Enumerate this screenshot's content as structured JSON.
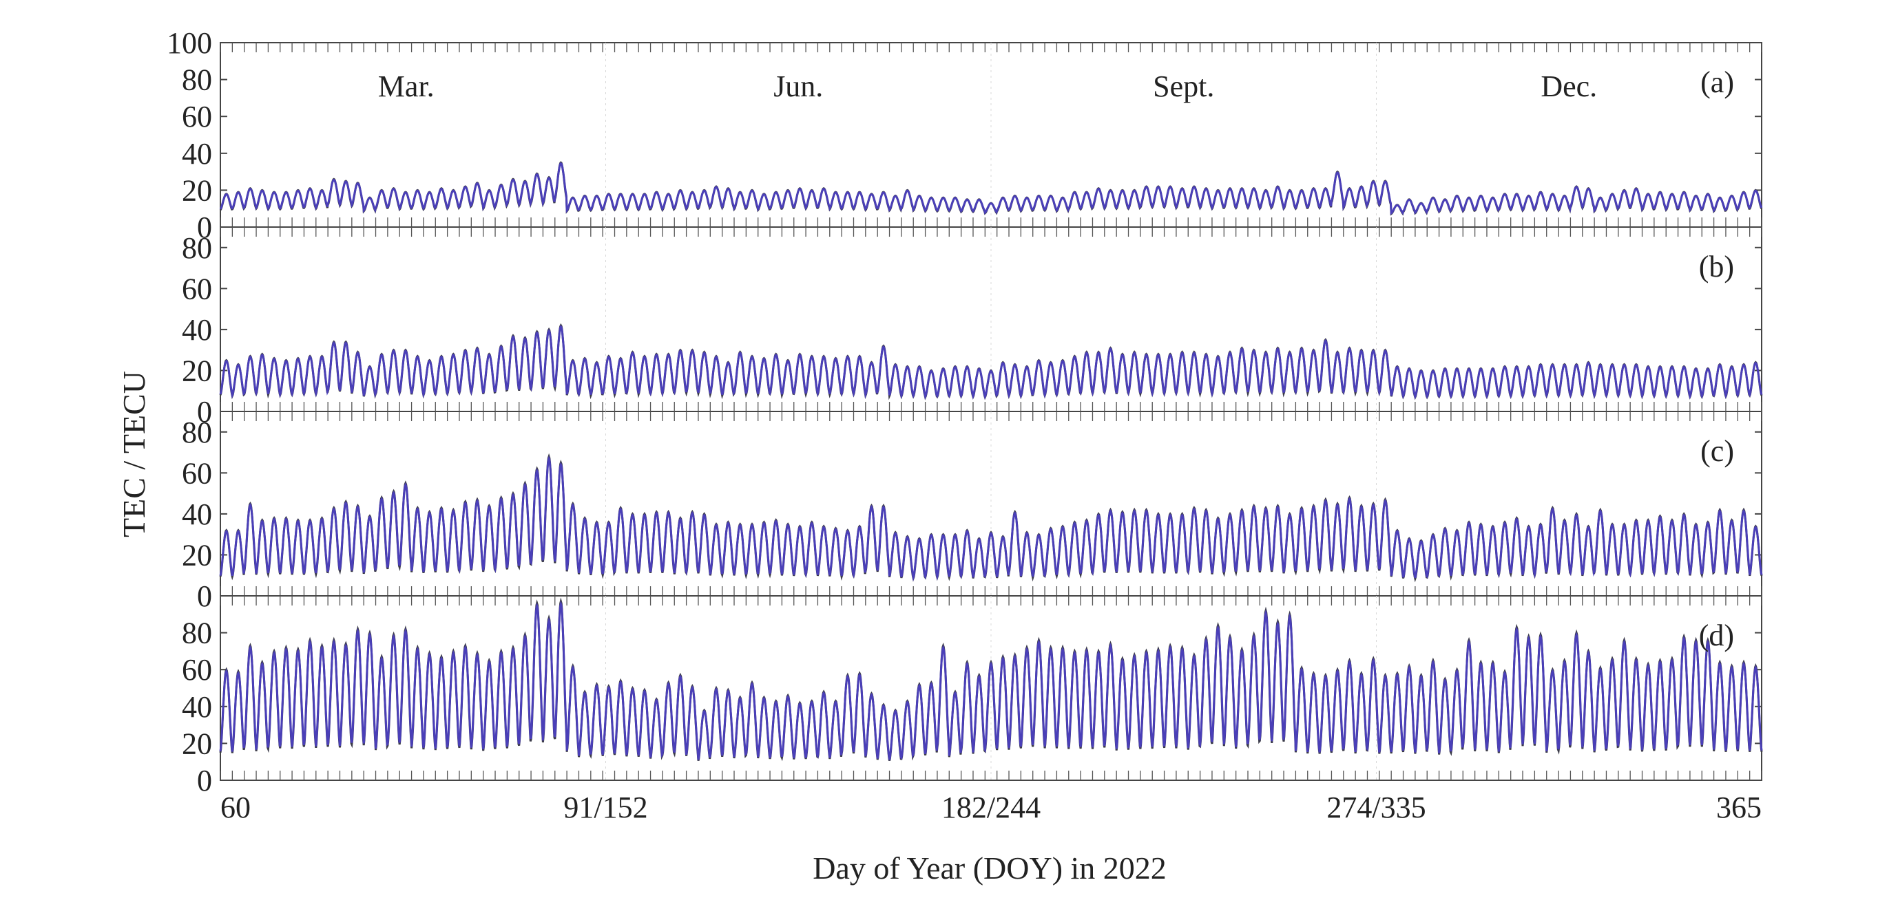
{
  "chart_data": {
    "type": "line",
    "xlabel": "Day of Year (DOY) in 2022",
    "ylabel": "TEC / TECU",
    "x_tick_labels": [
      "60",
      "91/152",
      "182/244",
      "274/335",
      "365"
    ],
    "month_labels": [
      "Mar.",
      "Jun.",
      "Sept.",
      "Dec."
    ],
    "segments": [
      {
        "month": "Mar.",
        "doy_start": 60,
        "doy_end": 91
      },
      {
        "month": "Jun.",
        "doy_start": 152,
        "doy_end": 182
      },
      {
        "month": "Sept.",
        "doy_start": 244,
        "doy_end": 274
      },
      {
        "month": "Dec.",
        "doy_start": 335,
        "doy_end": 365
      }
    ],
    "series_colors": {
      "observed": "#3c3c4a",
      "model": "#4a3fb8"
    },
    "panels": [
      {
        "label": "(a)",
        "ylim": [
          0,
          100
        ],
        "yticks": [
          "0",
          "20",
          "40",
          "60",
          "80",
          "100"
        ],
        "daily_max": [
          18,
          19,
          21,
          20,
          19,
          19,
          20,
          21,
          20,
          26,
          25,
          24,
          16,
          20,
          21,
          19,
          20,
          19,
          21,
          20,
          22,
          24,
          20,
          23,
          26,
          25,
          29,
          27,
          35,
          16,
          17,
          17,
          18,
          18,
          18,
          18,
          19,
          18,
          20,
          19,
          20,
          22,
          21,
          19,
          20,
          18,
          19,
          20,
          21,
          20,
          21,
          19,
          19,
          19,
          18,
          19,
          17,
          20,
          17,
          16,
          16,
          16,
          15,
          15,
          13,
          16,
          17,
          16,
          17,
          17,
          16,
          19,
          19,
          21,
          20,
          20,
          20,
          22,
          22,
          22,
          21,
          22,
          21,
          20,
          21,
          21,
          21,
          20,
          22,
          20,
          20,
          21,
          21,
          30,
          21,
          22,
          25,
          25,
          12,
          15,
          13,
          16,
          15,
          17,
          16,
          17,
          16,
          18,
          18,
          17,
          19,
          18,
          17,
          22,
          21,
          16,
          18,
          20,
          21,
          18,
          19,
          18,
          19,
          17,
          18,
          16,
          17,
          19,
          20
        ]
      },
      {
        "label": "(b)",
        "ylim": [
          0,
          90
        ],
        "yticks": [
          "0",
          "20",
          "40",
          "60",
          "80"
        ],
        "daily_max": [
          25,
          23,
          27,
          28,
          26,
          25,
          26,
          27,
          27,
          34,
          34,
          29,
          22,
          28,
          30,
          30,
          27,
          25,
          27,
          28,
          30,
          31,
          28,
          32,
          37,
          36,
          39,
          40,
          42,
          25,
          26,
          24,
          27,
          26,
          29,
          27,
          28,
          28,
          30,
          30,
          29,
          27,
          24,
          29,
          27,
          26,
          28,
          25,
          28,
          27,
          27,
          26,
          27,
          27,
          24,
          32,
          23,
          22,
          22,
          20,
          21,
          22,
          22,
          21,
          20,
          24,
          23,
          22,
          25,
          24,
          25,
          27,
          29,
          29,
          31,
          28,
          29,
          28,
          28,
          28,
          29,
          29,
          28,
          27,
          29,
          31,
          30,
          29,
          31,
          29,
          31,
          30,
          35,
          29,
          31,
          30,
          30,
          30,
          22,
          21,
          20,
          20,
          21,
          21,
          21,
          21,
          21,
          22,
          22,
          22,
          23,
          23,
          23,
          23,
          24,
          23,
          23,
          23,
          23,
          22,
          22,
          22,
          22,
          21,
          21,
          23,
          22,
          23,
          24
        ]
      },
      {
        "label": "(c)",
        "ylim": [
          0,
          90
        ],
        "yticks": [
          "0",
          "20",
          "40",
          "60",
          "80"
        ],
        "daily_max": [
          32,
          32,
          45,
          37,
          38,
          38,
          37,
          37,
          38,
          43,
          46,
          44,
          39,
          48,
          51,
          55,
          43,
          41,
          43,
          42,
          46,
          47,
          44,
          48,
          50,
          55,
          62,
          68,
          65,
          45,
          38,
          36,
          36,
          43,
          40,
          40,
          41,
          41,
          38,
          41,
          40,
          35,
          36,
          35,
          35,
          36,
          37,
          35,
          34,
          36,
          34,
          33,
          32,
          34,
          44,
          44,
          31,
          29,
          28,
          30,
          30,
          30,
          32,
          28,
          31,
          29,
          41,
          31,
          30,
          33,
          34,
          36,
          37,
          40,
          42,
          41,
          42,
          42,
          40,
          40,
          40,
          43,
          42,
          38,
          40,
          42,
          44,
          43,
          44,
          40,
          43,
          44,
          47,
          45,
          48,
          44,
          45,
          47,
          32,
          28,
          27,
          30,
          33,
          32,
          36,
          35,
          34,
          36,
          38,
          34,
          35,
          43,
          37,
          40,
          34,
          42,
          35,
          35,
          37,
          37,
          39,
          37,
          40,
          35,
          36,
          42,
          37,
          42,
          34
        ]
      },
      {
        "label": "(d)",
        "ylim": [
          0,
          100
        ],
        "yticks": [
          "0",
          "20",
          "40",
          "60",
          "80"
        ],
        "daily_max": [
          60,
          59,
          73,
          64,
          70,
          72,
          71,
          76,
          73,
          76,
          74,
          82,
          80,
          67,
          79,
          82,
          72,
          69,
          67,
          70,
          73,
          69,
          65,
          70,
          72,
          79,
          96,
          88,
          97,
          62,
          48,
          52,
          51,
          54,
          50,
          49,
          44,
          53,
          57,
          51,
          38,
          50,
          49,
          45,
          53,
          45,
          43,
          46,
          42,
          43,
          48,
          43,
          57,
          58,
          47,
          41,
          38,
          43,
          52,
          53,
          73,
          48,
          64,
          57,
          64,
          67,
          68,
          72,
          76,
          72,
          72,
          70,
          71,
          70,
          74,
          66,
          68,
          70,
          71,
          73,
          72,
          68,
          77,
          84,
          78,
          71,
          79,
          92,
          86,
          90,
          61,
          58,
          57,
          60,
          65,
          58,
          66,
          57,
          58,
          62,
          57,
          65,
          55,
          60,
          76,
          64,
          64,
          59,
          83,
          78,
          79,
          60,
          65,
          80,
          70,
          61,
          66,
          76,
          66,
          63,
          65,
          66,
          78,
          76,
          76,
          64,
          62,
          64,
          62
        ]
      }
    ]
  }
}
